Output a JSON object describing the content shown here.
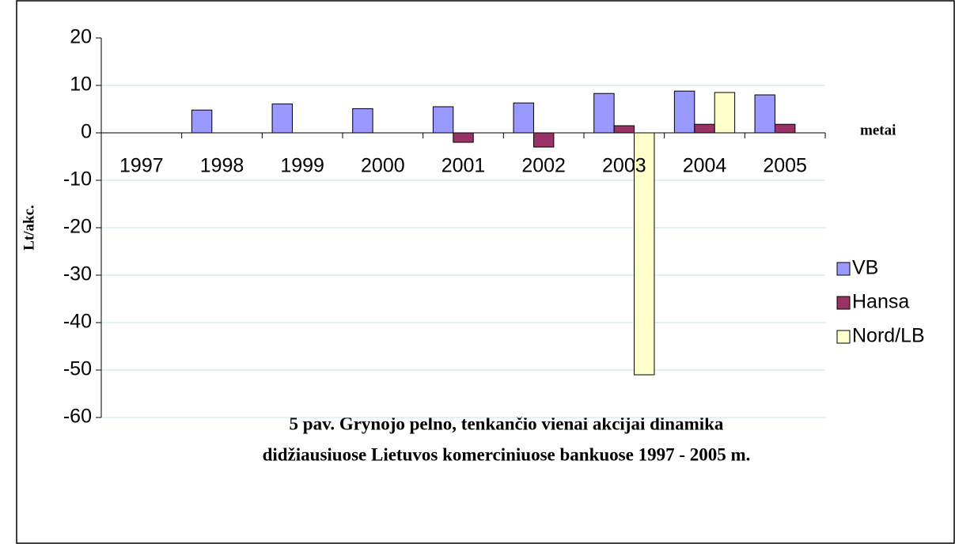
{
  "chart_data": {
    "type": "bar",
    "title": [
      "5 pav. Grynojo pelno, tenkančio vienai akcijai dinamika",
      "didžiausiuose Lietuvos komerciniuose bankuose 1997 - 2005 m."
    ],
    "x_label": "metai",
    "y_label": "Lt/akc.",
    "categories": [
      "1997",
      "1998",
      "1999",
      "2000",
      "2001",
      "2002",
      "2003",
      "2004",
      "2005"
    ],
    "series": [
      {
        "name": "VB",
        "color": "#9999ff",
        "values": [
          null,
          4.8,
          6.1,
          5.1,
          5.5,
          6.3,
          8.3,
          8.8,
          8.0
        ]
      },
      {
        "name": "Hansa",
        "color": "#993366",
        "values": [
          null,
          null,
          null,
          null,
          -2,
          -3,
          1.5,
          1.8,
          1.8
        ]
      },
      {
        "name": "Nord/LB",
        "color": "#ffffcc",
        "values": [
          null,
          null,
          null,
          null,
          null,
          null,
          -51,
          8.5,
          null
        ]
      }
    ],
    "ylim": [
      -60,
      20
    ],
    "yticks": [
      -60,
      -50,
      -40,
      -30,
      -20,
      -10,
      0,
      10,
      20
    ],
    "grid": true,
    "legend": "right"
  }
}
